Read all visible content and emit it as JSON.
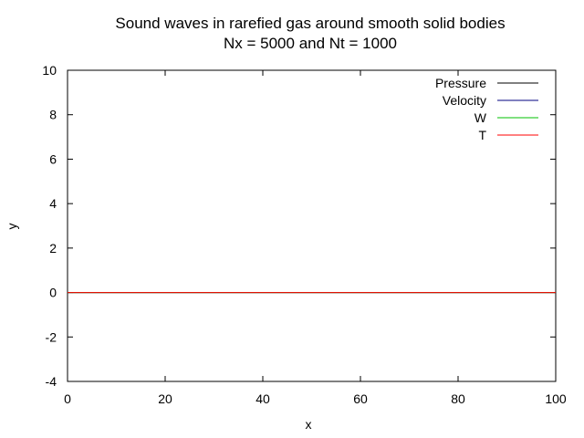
{
  "chart_data": {
    "type": "line",
    "title": "Sound waves in rarefied gas around smooth solid bodies",
    "subtitle": "Nx = 5000 and Nt = 1000",
    "xlabel": "x",
    "ylabel": "y",
    "xlim": [
      0,
      100
    ],
    "ylim": [
      -4,
      10
    ],
    "xticks": [
      "0",
      "20",
      "40",
      "60",
      "80",
      "100"
    ],
    "yticks": [
      "-4",
      "-2",
      "0",
      "2",
      "4",
      "6",
      "8",
      "10"
    ],
    "grid": false,
    "legend_position": "top-right",
    "series": [
      {
        "name": "Pressure",
        "color": "#000000",
        "x": [
          0,
          100
        ],
        "y": [
          0,
          0
        ]
      },
      {
        "name": "Velocity",
        "color": "#000080",
        "x": [
          0,
          100
        ],
        "y": [
          0,
          0
        ]
      },
      {
        "name": "W",
        "color": "#00c000",
        "x": [
          0,
          100
        ],
        "y": [
          0,
          0
        ]
      },
      {
        "name": "T",
        "color": "#ff0000",
        "x": [
          0,
          100
        ],
        "y": [
          0,
          0
        ]
      }
    ]
  }
}
